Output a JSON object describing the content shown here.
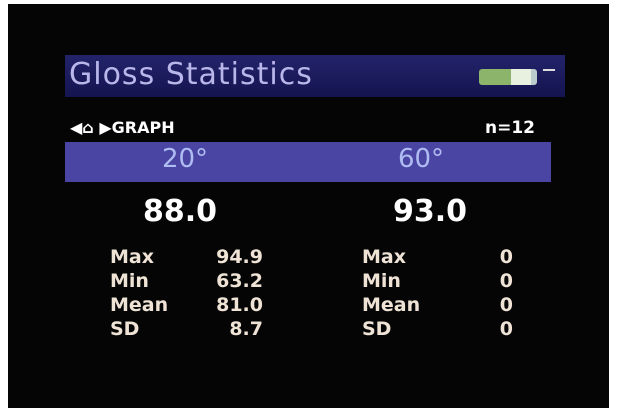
{
  "header": {
    "title": "Gloss Statistics"
  },
  "nav": {
    "label": "GRAPH",
    "count": "n=12"
  },
  "columns": [
    {
      "angle": "20°",
      "reading": "88.0",
      "stats": [
        {
          "label": "Max",
          "value": "94.9"
        },
        {
          "label": "Min",
          "value": "63.2"
        },
        {
          "label": "Mean",
          "value": "81.0"
        },
        {
          "label": "SD",
          "value": "8.7"
        }
      ]
    },
    {
      "angle": "60°",
      "reading": "93.0",
      "stats": [
        {
          "label": "Max",
          "value": "0"
        },
        {
          "label": "Min",
          "value": "0"
        },
        {
          "label": "Mean",
          "value": "0"
        },
        {
          "label": "SD",
          "value": "0"
        }
      ]
    }
  ]
}
